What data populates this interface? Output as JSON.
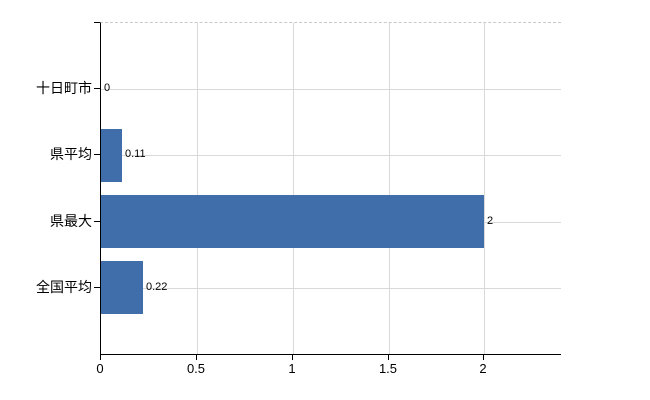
{
  "chart_data": {
    "type": "bar",
    "orientation": "horizontal",
    "title": "",
    "xlabel": "",
    "ylabel": "",
    "categories": [
      "十日町市",
      "県平均",
      "県最大",
      "全国平均"
    ],
    "values": [
      0,
      0.11,
      2,
      0.22
    ],
    "value_labels": [
      "0",
      "0.11",
      "2",
      "0.22"
    ],
    "x_ticks": [
      0,
      0.5,
      1,
      1.5,
      2
    ],
    "x_tick_labels": [
      "0",
      "0.5",
      "1",
      "1.5",
      "2"
    ],
    "xlim": [
      0,
      2.4
    ],
    "grid": true,
    "legend": "none",
    "colors": {
      "bar": "#3f6eab",
      "gridline": "#d9d9d9",
      "plot_border_dashed": "#c9c9c9",
      "axis": "#000000",
      "text": "#000000",
      "background": "#ffffff"
    }
  }
}
